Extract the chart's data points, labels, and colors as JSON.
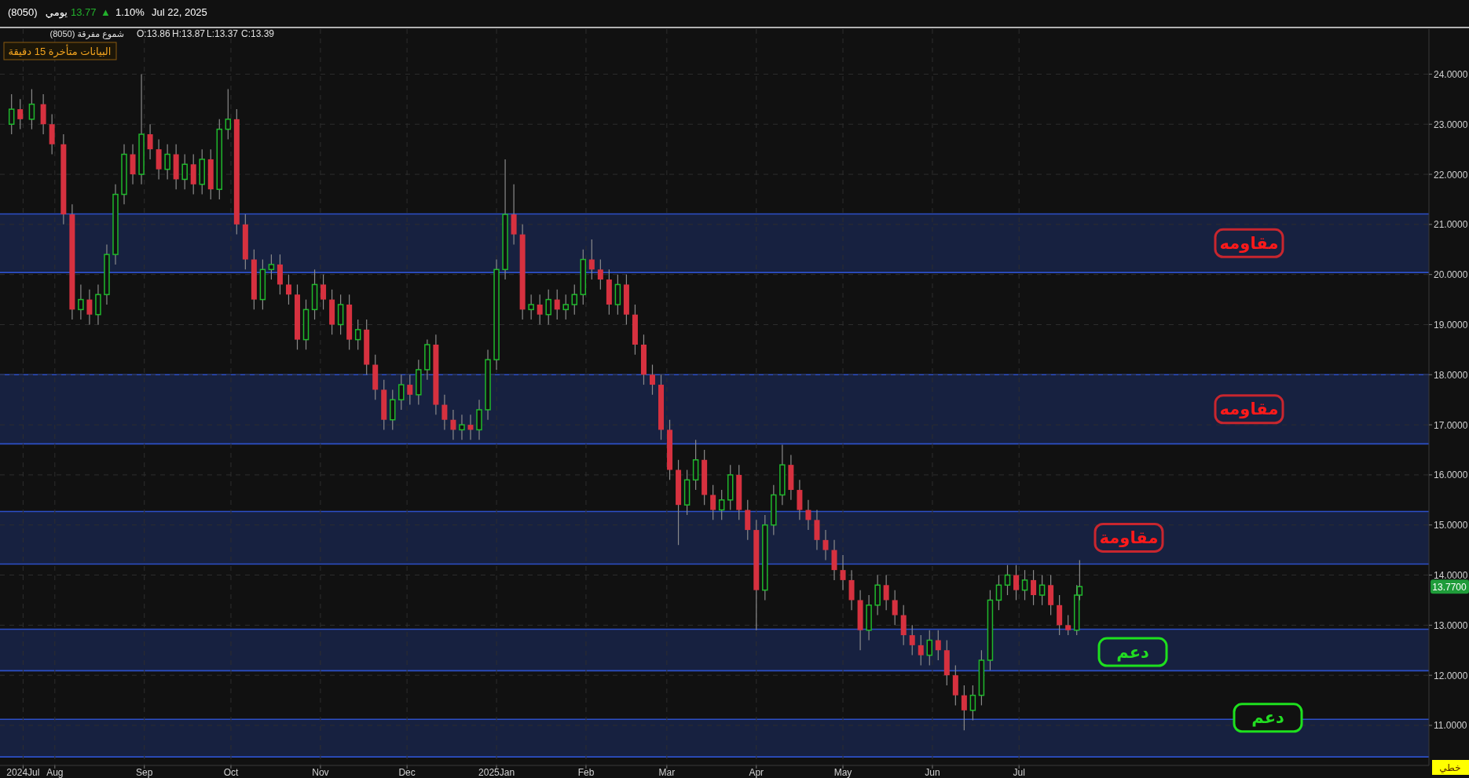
{
  "chart_data": {
    "type": "candlestick",
    "x": [
      "2024-07-17",
      "2024-07-20",
      "2024-07-24",
      "2024-07-28",
      "2024-07-31",
      "2024-08-04",
      "2024-08-07",
      "2024-08-10",
      "2024-08-13",
      "2024-08-16",
      "2024-08-19",
      "2024-08-22",
      "2024-08-25",
      "2024-08-28",
      "2024-08-31",
      "2024-09-03",
      "2024-09-06",
      "2024-09-09",
      "2024-09-12",
      "2024-09-15",
      "2024-09-18",
      "2024-09-21",
      "2024-09-24",
      "2024-09-27",
      "2024-09-30",
      "2024-10-03",
      "2024-10-06",
      "2024-10-09",
      "2024-10-12",
      "2024-10-15",
      "2024-10-18",
      "2024-10-21",
      "2024-10-24",
      "2024-10-27",
      "2024-10-30",
      "2024-11-02",
      "2024-11-05",
      "2024-11-08",
      "2024-11-11",
      "2024-11-14",
      "2024-11-17",
      "2024-11-20",
      "2024-11-23",
      "2024-11-26",
      "2024-11-29",
      "2024-12-02",
      "2024-12-05",
      "2024-12-08",
      "2024-12-11",
      "2024-12-14",
      "2024-12-17",
      "2024-12-20",
      "2024-12-23",
      "2024-12-26",
      "2024-12-29",
      "2025-01-01",
      "2025-01-04",
      "2025-01-07",
      "2025-01-10",
      "2025-01-13",
      "2025-01-16",
      "2025-01-19",
      "2025-01-22",
      "2025-01-25",
      "2025-01-28",
      "2025-01-31",
      "2025-02-03",
      "2025-02-06",
      "2025-02-09",
      "2025-02-12",
      "2025-02-15",
      "2025-02-18",
      "2025-02-21",
      "2025-02-24",
      "2025-02-27",
      "2025-03-02",
      "2025-03-05",
      "2025-03-08",
      "2025-03-11",
      "2025-03-14",
      "2025-03-17",
      "2025-03-20",
      "2025-03-23",
      "2025-03-26",
      "2025-03-29",
      "2025-04-01",
      "2025-04-04",
      "2025-04-07",
      "2025-04-10",
      "2025-04-13",
      "2025-04-16",
      "2025-04-19",
      "2025-04-22",
      "2025-04-25",
      "2025-04-28",
      "2025-05-01",
      "2025-05-04",
      "2025-05-07",
      "2025-05-10",
      "2025-05-13",
      "2025-05-16",
      "2025-05-19",
      "2025-05-22",
      "2025-05-25",
      "2025-05-28",
      "2025-05-31",
      "2025-06-03",
      "2025-06-06",
      "2025-06-09",
      "2025-06-12",
      "2025-06-15",
      "2025-06-18",
      "2025-06-21",
      "2025-06-24",
      "2025-06-27",
      "2025-06-30",
      "2025-07-03",
      "2025-07-06",
      "2025-07-09",
      "2025-07-12",
      "2025-07-15",
      "2025-07-18",
      "2025-07-21",
      "2025-07-22"
    ],
    "ohlc": [
      [
        23.0,
        23.6,
        22.8,
        23.3
      ],
      [
        23.3,
        23.5,
        22.9,
        23.1
      ],
      [
        23.1,
        23.7,
        22.9,
        23.4
      ],
      [
        23.4,
        23.6,
        22.8,
        23.0
      ],
      [
        23.0,
        23.2,
        22.4,
        22.6
      ],
      [
        22.6,
        22.8,
        21.0,
        21.2
      ],
      [
        21.2,
        21.4,
        19.1,
        19.3
      ],
      [
        19.3,
        19.8,
        19.1,
        19.5
      ],
      [
        19.5,
        19.7,
        19.0,
        19.2
      ],
      [
        19.2,
        19.8,
        19.0,
        19.6
      ],
      [
        19.6,
        20.6,
        19.4,
        20.4
      ],
      [
        20.4,
        21.8,
        20.2,
        21.6
      ],
      [
        21.6,
        22.6,
        21.4,
        22.4
      ],
      [
        22.4,
        22.6,
        21.8,
        22.0
      ],
      [
        22.0,
        24.0,
        21.8,
        22.8
      ],
      [
        22.8,
        23.0,
        22.3,
        22.5
      ],
      [
        22.5,
        22.7,
        21.9,
        22.1
      ],
      [
        22.1,
        22.6,
        21.9,
        22.4
      ],
      [
        22.4,
        22.6,
        21.7,
        21.9
      ],
      [
        21.9,
        22.4,
        21.7,
        22.2
      ],
      [
        22.2,
        22.4,
        21.6,
        21.8
      ],
      [
        21.8,
        22.5,
        21.6,
        22.3
      ],
      [
        22.3,
        22.5,
        21.5,
        21.7
      ],
      [
        21.7,
        23.1,
        21.5,
        22.9
      ],
      [
        22.9,
        23.7,
        22.7,
        23.1
      ],
      [
        23.1,
        23.3,
        20.8,
        21.0
      ],
      [
        21.0,
        21.2,
        20.1,
        20.3
      ],
      [
        20.3,
        20.5,
        19.3,
        19.5
      ],
      [
        19.5,
        20.3,
        19.3,
        20.1
      ],
      [
        20.1,
        20.4,
        19.9,
        20.2
      ],
      [
        20.2,
        20.4,
        19.6,
        19.8
      ],
      [
        19.8,
        20.0,
        19.4,
        19.6
      ],
      [
        19.6,
        19.8,
        18.5,
        18.7
      ],
      [
        18.7,
        19.5,
        18.5,
        19.3
      ],
      [
        19.3,
        20.1,
        19.1,
        19.8
      ],
      [
        19.8,
        20.0,
        19.3,
        19.5
      ],
      [
        19.5,
        19.7,
        18.8,
        19.0
      ],
      [
        19.0,
        19.6,
        18.8,
        19.4
      ],
      [
        19.4,
        19.6,
        18.5,
        18.7
      ],
      [
        18.7,
        19.1,
        18.5,
        18.9
      ],
      [
        18.9,
        19.1,
        18.0,
        18.2
      ],
      [
        18.2,
        18.4,
        17.5,
        17.7
      ],
      [
        17.7,
        17.9,
        16.9,
        17.1
      ],
      [
        17.1,
        17.7,
        16.9,
        17.5
      ],
      [
        17.5,
        18.0,
        17.3,
        17.8
      ],
      [
        17.8,
        18.0,
        17.4,
        17.6
      ],
      [
        17.6,
        18.3,
        17.4,
        18.1
      ],
      [
        18.1,
        18.7,
        17.9,
        18.6
      ],
      [
        18.6,
        18.8,
        17.2,
        17.4
      ],
      [
        17.4,
        17.6,
        16.9,
        17.1
      ],
      [
        17.1,
        17.3,
        16.7,
        16.9
      ],
      [
        16.9,
        17.2,
        16.7,
        17.0
      ],
      [
        17.0,
        17.2,
        16.7,
        16.9
      ],
      [
        16.9,
        17.5,
        16.7,
        17.3
      ],
      [
        17.3,
        18.5,
        17.1,
        18.3
      ],
      [
        18.3,
        20.3,
        18.1,
        20.1
      ],
      [
        20.1,
        22.3,
        19.9,
        21.2
      ],
      [
        21.2,
        21.8,
        20.6,
        20.8
      ],
      [
        20.8,
        21.0,
        19.1,
        19.3
      ],
      [
        19.3,
        19.6,
        19.1,
        19.4
      ],
      [
        19.4,
        19.6,
        19.0,
        19.2
      ],
      [
        19.2,
        19.7,
        19.0,
        19.5
      ],
      [
        19.5,
        19.7,
        19.1,
        19.3
      ],
      [
        19.3,
        19.6,
        19.1,
        19.4
      ],
      [
        19.4,
        19.8,
        19.2,
        19.6
      ],
      [
        19.6,
        20.5,
        19.4,
        20.3
      ],
      [
        20.3,
        20.7,
        19.9,
        20.1
      ],
      [
        20.1,
        20.3,
        19.7,
        19.9
      ],
      [
        19.9,
        20.1,
        19.2,
        19.4
      ],
      [
        19.4,
        20.0,
        19.2,
        19.8
      ],
      [
        19.8,
        20.0,
        19.0,
        19.2
      ],
      [
        19.2,
        19.4,
        18.4,
        18.6
      ],
      [
        18.6,
        18.8,
        17.8,
        18.0
      ],
      [
        18.0,
        18.2,
        17.6,
        17.8
      ],
      [
        17.8,
        18.0,
        16.7,
        16.9
      ],
      [
        16.9,
        17.1,
        15.9,
        16.1
      ],
      [
        16.1,
        16.3,
        14.6,
        15.4
      ],
      [
        15.4,
        16.1,
        15.2,
        15.9
      ],
      [
        15.9,
        16.7,
        15.7,
        16.3
      ],
      [
        16.3,
        16.5,
        15.4,
        15.6
      ],
      [
        15.6,
        15.8,
        15.1,
        15.3
      ],
      [
        15.3,
        15.7,
        15.1,
        15.5
      ],
      [
        15.5,
        16.2,
        15.3,
        16.0
      ],
      [
        16.0,
        16.2,
        15.1,
        15.3
      ],
      [
        15.3,
        15.5,
        14.7,
        14.9
      ],
      [
        14.9,
        15.1,
        12.9,
        13.7
      ],
      [
        13.7,
        15.2,
        13.5,
        15.0
      ],
      [
        15.0,
        15.8,
        14.8,
        15.6
      ],
      [
        15.6,
        16.6,
        15.4,
        16.2
      ],
      [
        16.2,
        16.4,
        15.5,
        15.7
      ],
      [
        15.7,
        15.9,
        15.1,
        15.3
      ],
      [
        15.3,
        15.5,
        14.9,
        15.1
      ],
      [
        15.1,
        15.3,
        14.5,
        14.7
      ],
      [
        14.7,
        14.9,
        14.3,
        14.5
      ],
      [
        14.5,
        14.7,
        13.9,
        14.1
      ],
      [
        14.1,
        14.4,
        13.7,
        13.9
      ],
      [
        13.9,
        14.1,
        13.3,
        13.5
      ],
      [
        13.5,
        13.7,
        12.5,
        12.9
      ],
      [
        12.9,
        13.6,
        12.7,
        13.4
      ],
      [
        13.4,
        14.0,
        13.2,
        13.8
      ],
      [
        13.8,
        14.0,
        13.3,
        13.5
      ],
      [
        13.5,
        13.7,
        13.0,
        13.2
      ],
      [
        13.2,
        13.4,
        12.6,
        12.8
      ],
      [
        12.8,
        13.0,
        12.4,
        12.6
      ],
      [
        12.6,
        12.8,
        12.2,
        12.4
      ],
      [
        12.4,
        12.9,
        12.2,
        12.7
      ],
      [
        12.7,
        12.9,
        12.3,
        12.5
      ],
      [
        12.5,
        12.7,
        11.8,
        12.0
      ],
      [
        12.0,
        12.2,
        11.4,
        11.6
      ],
      [
        11.6,
        11.8,
        10.9,
        11.3
      ],
      [
        11.3,
        11.8,
        11.1,
        11.6
      ],
      [
        11.6,
        12.5,
        11.4,
        12.3
      ],
      [
        12.3,
        13.7,
        12.1,
        13.5
      ],
      [
        13.5,
        14.0,
        13.3,
        13.8
      ],
      [
        13.8,
        14.2,
        13.6,
        14.0
      ],
      [
        14.0,
        14.2,
        13.5,
        13.7
      ],
      [
        13.7,
        14.1,
        13.5,
        13.9
      ],
      [
        13.9,
        14.1,
        13.4,
        13.6
      ],
      [
        13.6,
        14.0,
        13.4,
        13.8
      ],
      [
        13.8,
        14.0,
        13.2,
        13.4
      ],
      [
        13.4,
        13.6,
        12.8,
        13.0
      ],
      [
        13.0,
        13.2,
        12.8,
        12.9
      ],
      [
        12.9,
        13.8,
        12.8,
        13.6
      ],
      [
        13.6,
        14.3,
        13.5,
        13.77
      ]
    ],
    "xlim": [
      "2024-07-13",
      "2025-11-20"
    ],
    "xticks": [
      {
        "value": "2024-07-21",
        "label": "2024Jul"
      },
      {
        "value": "2024-08-01",
        "label": "Aug"
      },
      {
        "value": "2024-09-01",
        "label": "Sep"
      },
      {
        "value": "2024-10-01",
        "label": "Oct"
      },
      {
        "value": "2024-11-01",
        "label": "Nov"
      },
      {
        "value": "2024-12-01",
        "label": "Dec"
      },
      {
        "value": "2025-01-01",
        "label": "2025Jan"
      },
      {
        "value": "2025-02-01",
        "label": "Feb"
      },
      {
        "value": "2025-03-01",
        "label": "Mar"
      },
      {
        "value": "2025-04-01",
        "label": "Apr"
      },
      {
        "value": "2025-05-01",
        "label": "May"
      },
      {
        "value": "2025-06-01",
        "label": "Jun"
      },
      {
        "value": "2025-07-01",
        "label": "Jul"
      }
    ],
    "ylim": [
      10.2,
      24.9
    ],
    "yticks": [
      {
        "value": 11,
        "label": "11.0000"
      },
      {
        "value": 12,
        "label": "12.0000"
      },
      {
        "value": 13,
        "label": "13.0000"
      },
      {
        "value": 14,
        "label": "14.0000"
      },
      {
        "value": 15,
        "label": "15.0000"
      },
      {
        "value": 16,
        "label": "16.0000"
      },
      {
        "value": 17,
        "label": "17.0000"
      },
      {
        "value": 18,
        "label": "18.0000"
      },
      {
        "value": 19,
        "label": "19.0000"
      },
      {
        "value": 20,
        "label": "20.0000"
      },
      {
        "value": 21,
        "label": "21.0000"
      },
      {
        "value": 22,
        "label": "22.0000"
      },
      {
        "value": 23,
        "label": "23.0000"
      },
      {
        "value": 24,
        "label": "24.0000"
      }
    ],
    "grid": true,
    "bands": [
      {
        "axis": "y",
        "from": 20.04,
        "to": 21.21,
        "color": "#172140",
        "label": "مقاومه"
      },
      {
        "axis": "y",
        "from": 16.62,
        "to": 18.0,
        "color": "#172140",
        "label": "مقاومه"
      },
      {
        "axis": "y",
        "from": 14.22,
        "to": 15.27,
        "color": "#172140",
        "label": "مقاومة"
      },
      {
        "axis": "y",
        "from": 12.09,
        "to": 12.92,
        "color": "#172140",
        "label": "دعم"
      },
      {
        "axis": "y",
        "from": 10.37,
        "to": 11.12,
        "color": "#172140",
        "label": "دعم"
      }
    ],
    "annotations": [
      "(8050)",
      "يومي",
      "13.77",
      "▲",
      "1.10%",
      "Jul 22, 2025",
      "شموع مفرقة (8050)",
      "O:13.86",
      "H:13.87",
      "L:13.37",
      "C:13.39",
      "البيانات متأخرة 15 دقيقة",
      "13.7700",
      "خطي"
    ]
  }
}
